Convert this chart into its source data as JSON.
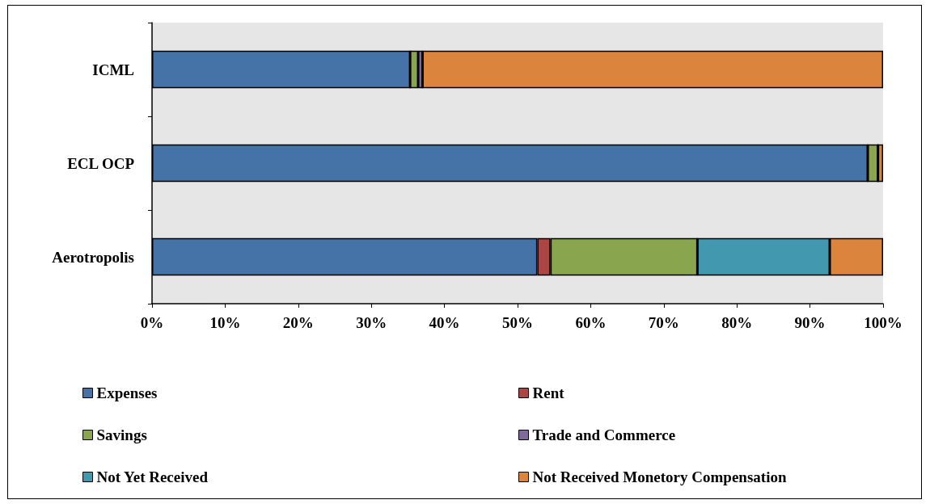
{
  "chart_data": {
    "type": "bar",
    "orientation": "horizontal",
    "stacked": true,
    "categories": [
      "ICML",
      "ECL OCP",
      "Aerotropolis"
    ],
    "series": [
      {
        "name": "Expenses",
        "color": "#4572a7",
        "values": [
          35.3,
          97.9,
          52.7
        ]
      },
      {
        "name": "Rent",
        "color": "#aa4643",
        "values": [
          0,
          0,
          1.8
        ]
      },
      {
        "name": "Savings",
        "color": "#89a54e",
        "values": [
          1.1,
          1.4,
          20.1
        ]
      },
      {
        "name": "Trade and Commerce",
        "color": "#80699b",
        "values": [
          0.6,
          0,
          0
        ]
      },
      {
        "name": "Not Yet Received",
        "color": "#4198af",
        "values": [
          0,
          0,
          18.1
        ]
      },
      {
        "name": "Not Received Monetory Compensation",
        "color": "#db843d",
        "values": [
          63.0,
          0.7,
          7.3
        ]
      }
    ],
    "xlim": [
      0,
      100
    ],
    "xticks": [
      {
        "value": 0,
        "label": "0%"
      },
      {
        "value": 10,
        "label": "10%"
      },
      {
        "value": 20,
        "label": "20%"
      },
      {
        "value": 30,
        "label": "30%"
      },
      {
        "value": 40,
        "label": "40%"
      },
      {
        "value": 50,
        "label": "50%"
      },
      {
        "value": 60,
        "label": "60%"
      },
      {
        "value": 70,
        "label": "70%"
      },
      {
        "value": 80,
        "label": "80%"
      },
      {
        "value": 90,
        "label": "90%"
      },
      {
        "value": 100,
        "label": "100%"
      }
    ],
    "grid": false,
    "legend": "bottom"
  }
}
